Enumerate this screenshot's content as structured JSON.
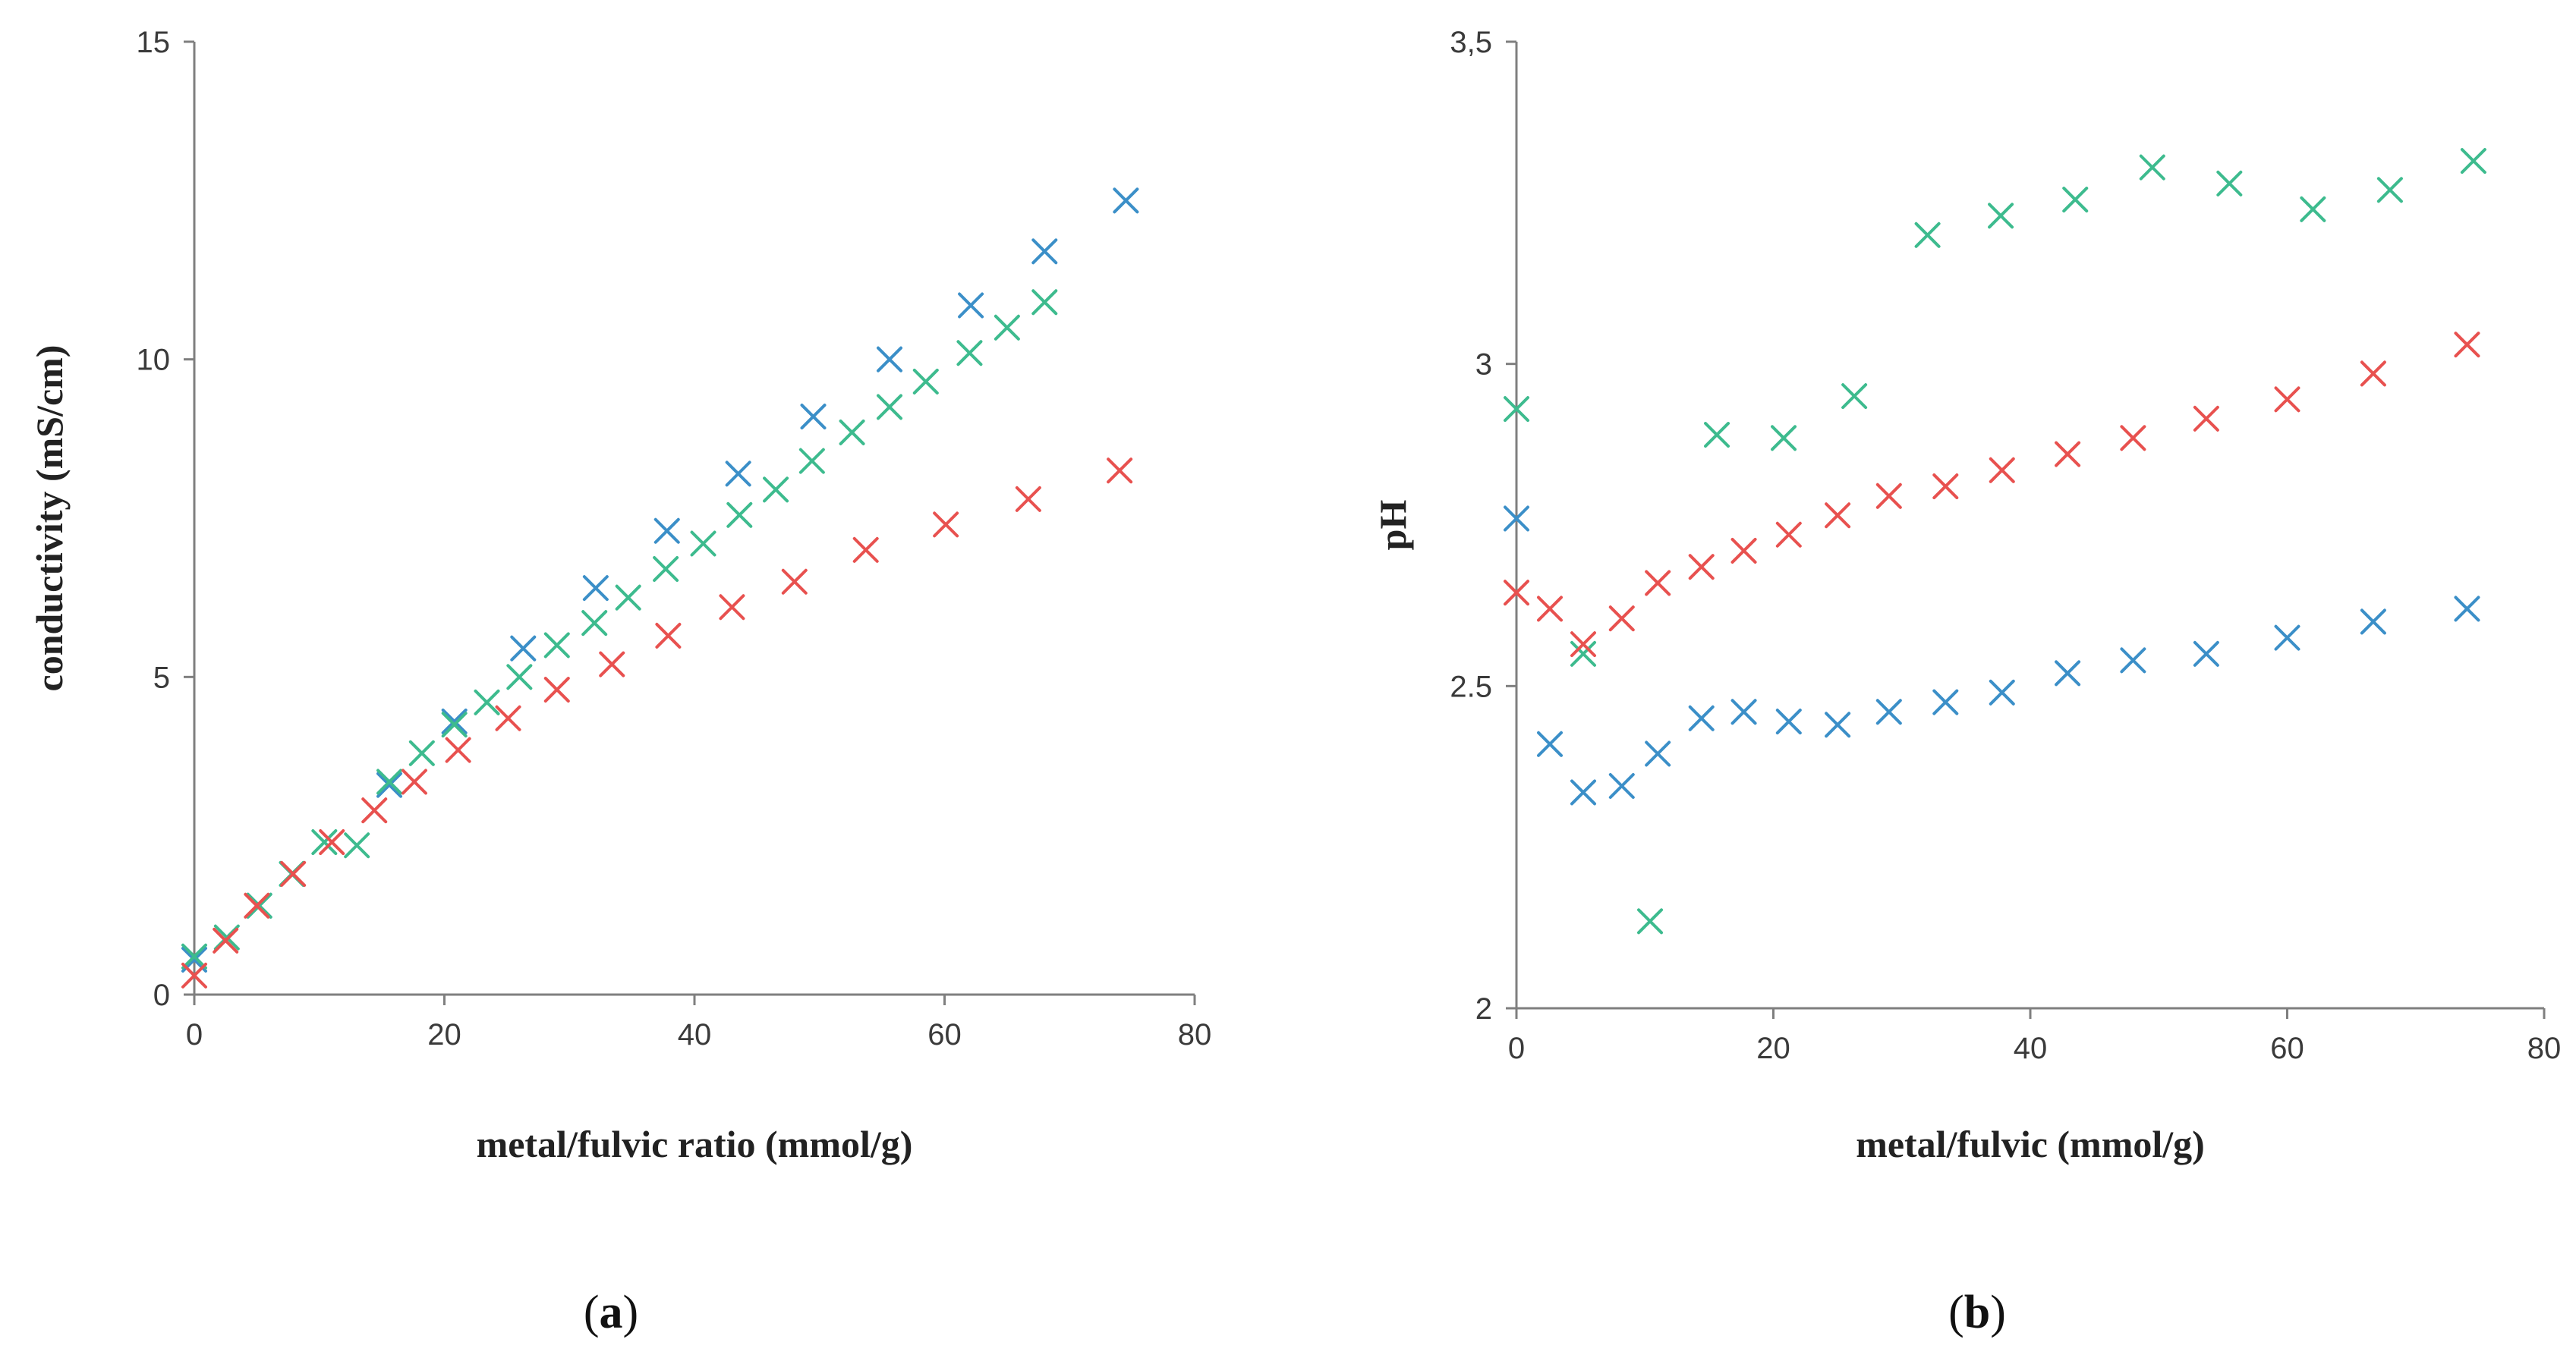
{
  "chart_data": [
    {
      "id": "a",
      "type": "scatter",
      "panel_label": "a",
      "xlabel": "metal/fulvic ratio (mmol/g)",
      "ylabel": "conductivity (mS/cm)",
      "xlim": [
        0,
        80
      ],
      "ylim": [
        0,
        15
      ],
      "xticks": [
        0,
        20,
        40,
        60,
        80
      ],
      "yticks": [
        0,
        5,
        10,
        15
      ],
      "ytick_labels": [
        "0",
        "5",
        "10",
        "15"
      ],
      "grid": false,
      "legend": "none",
      "series": [
        {
          "color": "#3b8fc8",
          "x": [
            0,
            5.2,
            15.6,
            20.8,
            26.3,
            32.1,
            37.8,
            43.5,
            49.5,
            55.6,
            62.1,
            68.0,
            74.5
          ],
          "y": [
            0.55,
            1.4,
            3.3,
            4.3,
            5.45,
            6.4,
            7.3,
            8.2,
            9.1,
            10.0,
            10.85,
            11.7,
            12.5
          ]
        },
        {
          "color": "#3dbb8e",
          "x": [
            0,
            2.6,
            5.2,
            7.8,
            10.4,
            13.0,
            15.6,
            18.2,
            20.8,
            23.4,
            26.0,
            29.0,
            32.0,
            34.7,
            37.7,
            40.7,
            43.6,
            46.5,
            49.4,
            52.6,
            55.6,
            58.5,
            62.0,
            65.0,
            68.0
          ],
          "y": [
            0.6,
            0.9,
            1.4,
            1.9,
            2.4,
            2.35,
            3.35,
            3.8,
            4.25,
            4.6,
            5.0,
            5.5,
            5.85,
            6.25,
            6.7,
            7.1,
            7.55,
            7.95,
            8.4,
            8.85,
            9.25,
            9.65,
            10.1,
            10.5,
            10.9
          ]
        },
        {
          "color": "#e8514f",
          "x": [
            0,
            2.5,
            5.0,
            7.9,
            11.0,
            14.4,
            17.6,
            21.1,
            25.1,
            29.0,
            33.4,
            37.9,
            43.0,
            48.0,
            53.7,
            60.1,
            66.7,
            74.0
          ],
          "y": [
            0.3,
            0.85,
            1.4,
            1.9,
            2.4,
            2.9,
            3.35,
            3.85,
            4.35,
            4.8,
            5.2,
            5.65,
            6.1,
            6.5,
            7.0,
            7.4,
            7.8,
            8.25
          ]
        }
      ]
    },
    {
      "id": "b",
      "type": "scatter",
      "panel_label": "b",
      "xlabel": "metal/fulvic (mmol/g)",
      "ylabel": "pH",
      "xlim": [
        0,
        80
      ],
      "ylim": [
        2,
        3.5
      ],
      "xticks": [
        0,
        20,
        40,
        60,
        80
      ],
      "yticks": [
        2,
        2.5,
        3,
        3.5
      ],
      "ytick_labels": [
        "2",
        "2.5",
        "3",
        "3,5"
      ],
      "grid": false,
      "legend": "none",
      "series": [
        {
          "color": "#3b8fc8",
          "x": [
            0,
            2.6,
            5.2,
            8.2,
            11.0,
            14.4,
            17.7,
            21.2,
            25.0,
            29.0,
            33.4,
            37.8,
            42.9,
            48.0,
            53.7,
            60.0,
            66.7,
            74.0
          ],
          "y": [
            2.76,
            2.41,
            2.335,
            2.345,
            2.395,
            2.45,
            2.46,
            2.445,
            2.44,
            2.46,
            2.475,
            2.49,
            2.52,
            2.54,
            2.55,
            2.575,
            2.6,
            2.62
          ]
        },
        {
          "color": "#3dbb8e",
          "x": [
            0,
            5.2,
            10.4,
            15.6,
            20.8,
            26.3,
            32.0,
            37.7,
            43.5,
            49.5,
            55.5,
            62.0,
            68.0,
            74.5
          ],
          "y": [
            2.93,
            2.55,
            2.135,
            2.89,
            2.885,
            2.95,
            3.2,
            3.23,
            3.255,
            3.305,
            3.28,
            3.24,
            3.27,
            3.315
          ]
        },
        {
          "color": "#e8514f",
          "x": [
            0,
            2.6,
            5.2,
            8.2,
            11.0,
            14.4,
            17.7,
            21.2,
            25.0,
            29.0,
            33.4,
            37.8,
            42.9,
            48.0,
            53.7,
            60.0,
            66.7,
            74.0
          ],
          "y": [
            2.645,
            2.62,
            2.565,
            2.605,
            2.66,
            2.685,
            2.71,
            2.735,
            2.765,
            2.795,
            2.81,
            2.835,
            2.86,
            2.885,
            2.915,
            2.945,
            2.985,
            3.03
          ]
        }
      ]
    }
  ]
}
